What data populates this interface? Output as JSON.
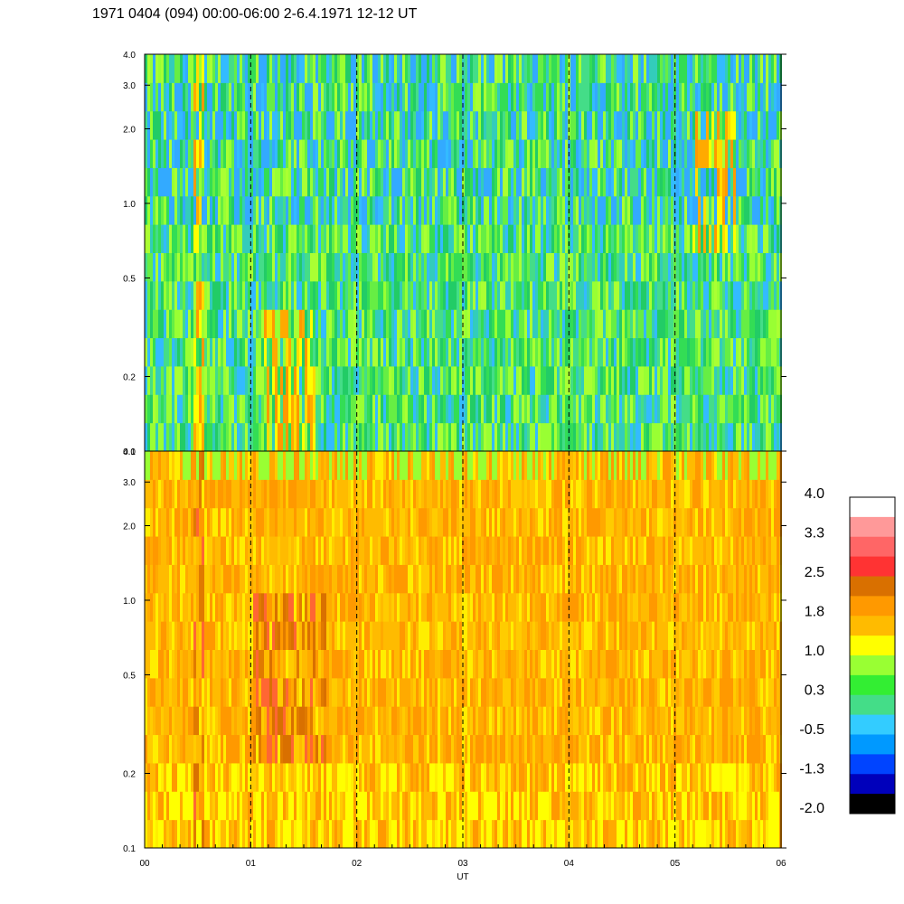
{
  "title": "1971 0404 (094) 00:00-06:00 2-6.4.1971 12-12 UT",
  "chart_data": {
    "type": "heatmap",
    "title": "1971 0404 (094) 00:00-06:00 2-6.4.1971 12-12 UT",
    "xlabel": "UT",
    "ylabel": "",
    "x_ticks": [
      "00",
      "01",
      "02",
      "03",
      "04",
      "05",
      "06"
    ],
    "xlim": [
      0,
      6
    ],
    "y_scale": "log",
    "y_ticks": [
      "0.1",
      "0.2",
      "0.5",
      "1.0",
      "2.0",
      "3.0",
      "4.0"
    ],
    "ylim": [
      0.1,
      4.0
    ],
    "grid": "dashed vertical lines at each hour",
    "panels": [
      {
        "name": "upper",
        "dominant_range": "green to blue, warmer patches near 00:30 and 05:30"
      },
      {
        "name": "lower",
        "dominant_range": "orange to yellow, red streaks near 00:30 and 01:30"
      }
    ],
    "colorbar": {
      "labels": [
        "4.0",
        "3.3",
        "2.5",
        "1.8",
        "1.0",
        "0.3",
        "-0.5",
        "-1.3",
        "-2.0"
      ],
      "colors": [
        "#ffffff",
        "#ff9999",
        "#ff6666",
        "#ff3333",
        "#d97000",
        "#ff9900",
        "#ffbb00",
        "#ffff00",
        "#99ff33",
        "#33ee33",
        "#44dd88",
        "#33ccff",
        "#0099ff",
        "#0044ff",
        "#0000bb",
        "#000000"
      ]
    }
  }
}
